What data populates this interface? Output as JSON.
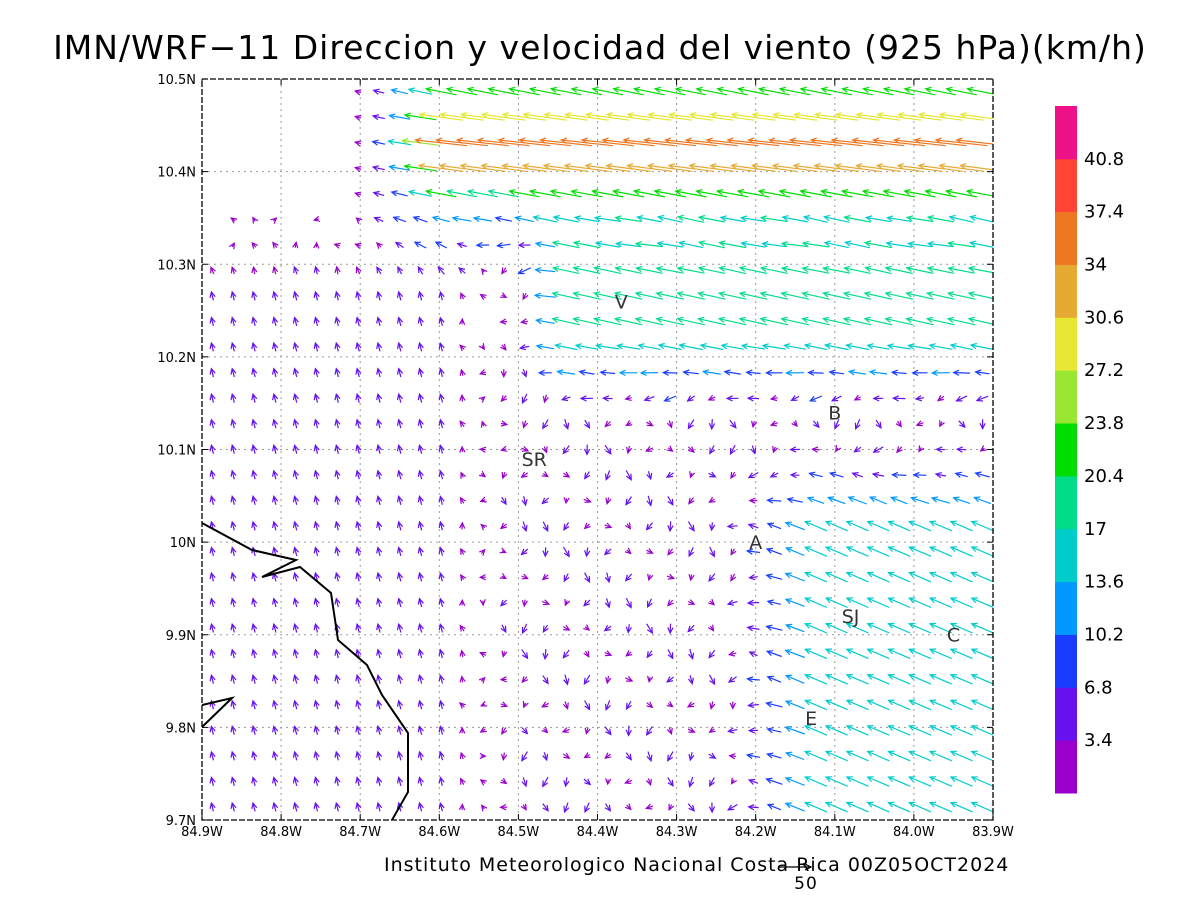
{
  "title": "IMN/WRF−11 Direccion y velocidad del viento (925 hPa)(km/h)",
  "credit": "Instituto Meteorologico Nacional Costa Rica 00Z05OCT2024",
  "reference_vector_label": "50",
  "map": {
    "lon_range": [
      -84.9,
      -83.9
    ],
    "lat_range": [
      9.7,
      10.5
    ],
    "x_tick_labels": [
      "84.9W",
      "84.8W",
      "84.7W",
      "84.6W",
      "84.5W",
      "84.4W",
      "84.3W",
      "84.2W",
      "84.1W",
      "84.0W",
      "83.9W"
    ],
    "y_tick_labels": [
      "9.7N",
      "9.8N",
      "9.9N",
      "10N",
      "10.1N",
      "10.2N",
      "10.3N",
      "10.4N",
      "10.5N"
    ],
    "city_labels": [
      {
        "name": "V",
        "lon": -84.37,
        "lat": 10.26
      },
      {
        "name": "B",
        "lon": -84.1,
        "lat": 10.14
      },
      {
        "name": "SR",
        "lon": -84.48,
        "lat": 10.09
      },
      {
        "name": "A",
        "lon": -84.2,
        "lat": 10.0
      },
      {
        "name": "SJ",
        "lon": -84.08,
        "lat": 9.92
      },
      {
        "name": "C",
        "lon": -83.95,
        "lat": 9.9
      },
      {
        "name": "E",
        "lon": -84.13,
        "lat": 9.81
      }
    ],
    "grid": "dotted",
    "coastline_color": "#000000"
  },
  "colorbar": {
    "labels": [
      "40.8",
      "37.4",
      "34",
      "30.6",
      "27.2",
      "23.8",
      "20.4",
      "17",
      "13.6",
      "10.2",
      "6.8",
      "3.4"
    ],
    "colors_bottom_to_top": [
      "#9900cc",
      "#6611ee",
      "#1a3cff",
      "#0099ff",
      "#00cccc",
      "#00dd88",
      "#00dd00",
      "#99e633",
      "#e6e633",
      "#e6aa33",
      "#ee7722",
      "#ff4433",
      "#ee1188"
    ]
  },
  "legend_position": "right"
}
